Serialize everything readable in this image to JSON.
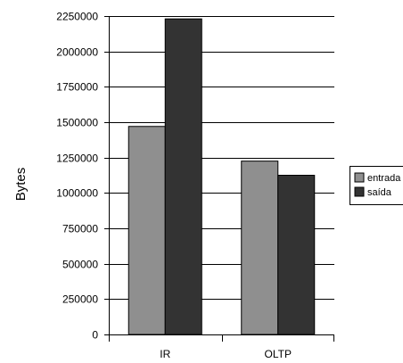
{
  "chart_data": {
    "type": "bar",
    "title": "",
    "xlabel": "",
    "ylabel": "Bytes",
    "ylim": [
      0,
      2250000
    ],
    "yticks": [
      0,
      250000,
      500000,
      750000,
      1000000,
      1250000,
      1500000,
      1750000,
      2000000,
      2250000
    ],
    "ytick_labels": [
      "0",
      "250000",
      "500000",
      "750000",
      "1000000",
      "1250000",
      "1500000",
      "1750000",
      "2000000",
      "2250000"
    ],
    "categories": [
      "IR",
      "OLTP"
    ],
    "series": [
      {
        "name": "entrada",
        "values": [
          1470000,
          1225000
        ],
        "color": "#8f8f8f"
      },
      {
        "name": "saída",
        "values": [
          2230000,
          1125000
        ],
        "color": "#333333"
      }
    ],
    "grid": true,
    "legend_position": "right"
  }
}
